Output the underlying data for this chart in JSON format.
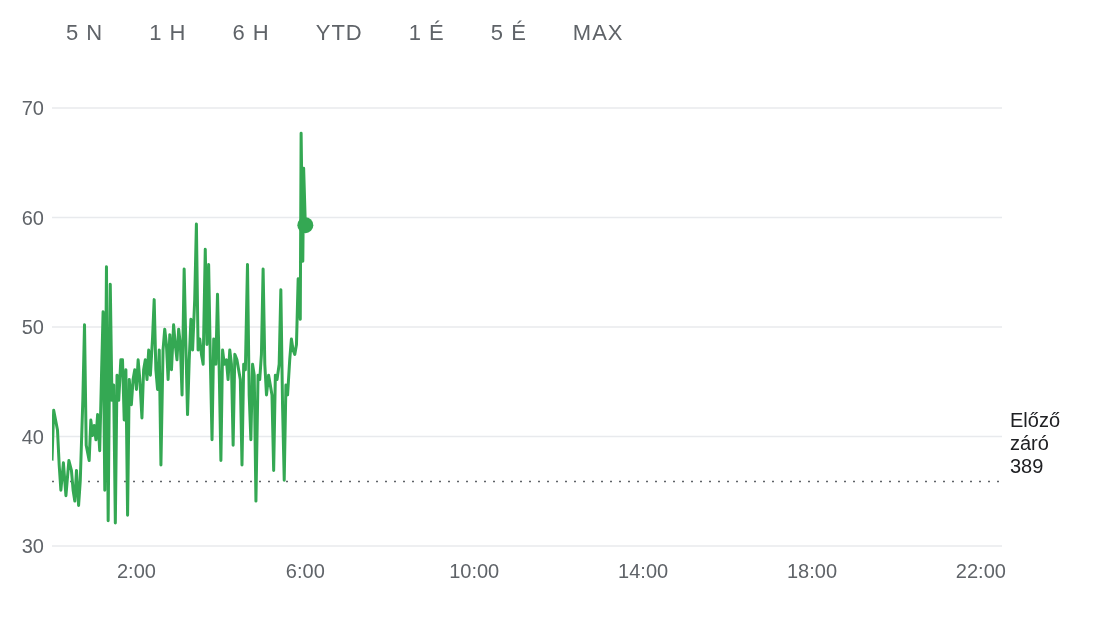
{
  "chart_data": {
    "type": "line",
    "annotations": [
      "5 N",
      "1 H",
      "6 H",
      "YTD",
      "1 É",
      "5 É",
      "MAX"
    ],
    "x": [
      0,
      0.04,
      0.13,
      0.17,
      0.21,
      0.27,
      0.33,
      0.4,
      0.46,
      0.5,
      0.54,
      0.58,
      0.63,
      0.67,
      0.73,
      0.77,
      0.81,
      0.88,
      0.92,
      0.96,
      1,
      1.04,
      1.08,
      1.13,
      1.17,
      1.21,
      1.25,
      1.29,
      1.33,
      1.38,
      1.42,
      1.46,
      1.5,
      1.54,
      1.58,
      1.63,
      1.67,
      1.71,
      1.75,
      1.79,
      1.83,
      1.88,
      1.92,
      1.96,
      2,
      2.04,
      2.08,
      2.13,
      2.17,
      2.21,
      2.25,
      2.29,
      2.33,
      2.38,
      2.42,
      2.46,
      2.5,
      2.54,
      2.58,
      2.63,
      2.67,
      2.71,
      2.75,
      2.79,
      2.83,
      2.88,
      2.92,
      2.96,
      3,
      3.04,
      3.08,
      3.13,
      3.17,
      3.21,
      3.25,
      3.29,
      3.33,
      3.38,
      3.42,
      3.46,
      3.5,
      3.54,
      3.58,
      3.63,
      3.67,
      3.71,
      3.75,
      3.79,
      3.83,
      3.88,
      3.92,
      3.96,
      4,
      4.04,
      4.08,
      4.13,
      4.17,
      4.21,
      4.25,
      4.29,
      4.33,
      4.38,
      4.42,
      4.46,
      4.5,
      4.54,
      4.58,
      4.63,
      4.67,
      4.71,
      4.75,
      4.79,
      4.83,
      4.88,
      4.92,
      4.96,
      5,
      5.04,
      5.08,
      5.13,
      5.17,
      5.21,
      5.25,
      5.29,
      5.33,
      5.38,
      5.42,
      5.46,
      5.5,
      5.54,
      5.58,
      5.63,
      5.67,
      5.71,
      5.75,
      5.79,
      5.83,
      5.88,
      5.9,
      5.94,
      5.96,
      6
    ],
    "series": [
      {
        "color": "#34a853",
        "values": [
          37.8,
          42.4,
          40.6,
          37.4,
          35.1,
          37.6,
          34.6,
          37.8,
          36.9,
          35.1,
          34.1,
          36.9,
          33.7,
          36.0,
          43.3,
          50.2,
          39.2,
          37.8,
          41.5,
          40.1,
          41.0,
          39.7,
          42.0,
          38.7,
          45.2,
          51.4,
          35.1,
          55.5,
          32.3,
          53.9,
          43.3,
          44.7,
          32.1,
          45.6,
          43.3,
          47.0,
          47.0,
          41.5,
          46.1,
          32.8,
          45.2,
          42.9,
          45.2,
          46.1,
          44.3,
          47.0,
          45.2,
          41.7,
          46.1,
          47.0,
          45.2,
          47.9,
          45.6,
          48.9,
          52.5,
          46.1,
          44.3,
          47.9,
          37.4,
          47.9,
          49.8,
          48.4,
          45.2,
          49.3,
          46.1,
          50.2,
          48.4,
          47.0,
          49.8,
          48.4,
          43.8,
          55.3,
          48.4,
          42.0,
          47.0,
          50.7,
          47.9,
          52.5,
          59.4,
          47.9,
          48.9,
          47.5,
          46.6,
          57.1,
          48.4,
          55.7,
          47.0,
          39.7,
          48.9,
          46.6,
          53.0,
          46.1,
          37.8,
          47.9,
          46.6,
          47.0,
          45.2,
          47.9,
          46.6,
          39.2,
          47.5,
          47.0,
          46.1,
          45.2,
          37.4,
          46.6,
          46.1,
          55.7,
          43.8,
          39.7,
          46.6,
          45.6,
          34.1,
          45.6,
          45.2,
          47.5,
          55.3,
          46.6,
          43.8,
          45.6,
          44.7,
          43.8,
          36.9,
          45.6,
          45.2,
          46.6,
          53.4,
          42.9,
          36.0,
          44.7,
          43.8,
          47.0,
          48.9,
          47.9,
          47.5,
          48.4,
          54.4,
          50.7,
          67.7,
          56.0,
          64.5,
          59.3
        ]
      }
    ],
    "xlim": [
      0,
      22.5
    ],
    "xticks": [
      {
        "value": 2,
        "label": "2:00"
      },
      {
        "value": 6,
        "label": "6:00"
      },
      {
        "value": 10,
        "label": "10:00"
      },
      {
        "value": 14,
        "label": "14:00"
      },
      {
        "value": 18,
        "label": "18:00"
      },
      {
        "value": 22,
        "label": "22:00"
      }
    ],
    "ylim": [
      30,
      70
    ],
    "yticks": [
      30,
      40,
      50,
      60,
      70
    ],
    "grid": "y",
    "marker": "none",
    "ref_lines": [
      {
        "axis": "y",
        "value": 35.9,
        "label": "Előző záró 389",
        "color": "#5f6368",
        "line_style": "dotted"
      }
    ]
  }
}
